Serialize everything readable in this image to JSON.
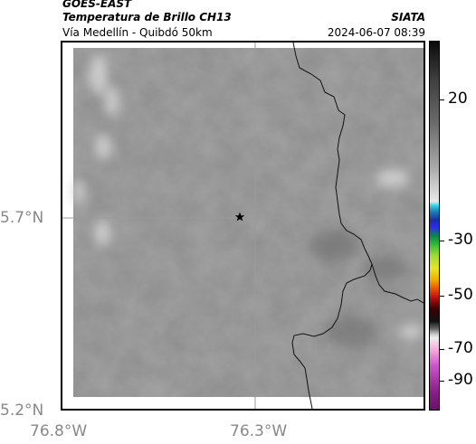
{
  "header": {
    "satellite": "GOES-EAST",
    "title": "Temperatura de Brillo CH13",
    "subtitle": "Vía Medellín - Quibdó 50km",
    "org": "SIATA",
    "timestamp": "2024-06-07 08:39"
  },
  "map": {
    "lat_labels": [
      "5.7°N",
      "5.2°N"
    ],
    "lon_labels": [
      "76.8°W",
      "76.3°W"
    ],
    "marker": "star",
    "colors": {
      "border": "#000000",
      "gridline": "#9a9a9a",
      "base_gray": "#8f8f8f"
    }
  },
  "colorbar": {
    "labels": [
      "20",
      "-30",
      "-50",
      "-70",
      "-90"
    ]
  }
}
